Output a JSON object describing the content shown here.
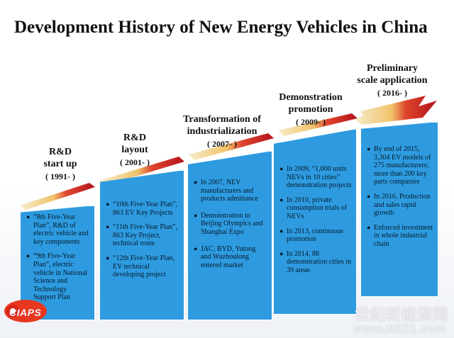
{
  "title": "Development History of New Energy Vehicles in China",
  "stages": [
    {
      "name": "R&D\nstart up",
      "year": "( 1991- )",
      "bullets": [
        "“8th Five-Year Plan”, R&D of electric vehicle and key components",
        "“9th Five-Year Plan”, electric vehicle in National Science and Technology Support Plan"
      ]
    },
    {
      "name": "R&D\nlayout",
      "year": "( 2001- )",
      "bullets": [
        "“10th  Five-Year Plan”, 863 EV Key Projects",
        "“11th Five-Year Plan”, 863 Key Project, technical route",
        "“12th Five-Year Plan, EV technical developing project"
      ]
    },
    {
      "name": "Transformation of\nindustrialization",
      "year": "( 2007- )",
      "bullets": [
        "In 2007, NEV manufacturers and products admittance",
        "Demonstration in Beijing Olympics and Shanghai Expo",
        "JAC, BYD, Yutong and Wuzhoulong entered market"
      ]
    },
    {
      "name": "Demonstration\npromotion",
      "year": "( 2009- )",
      "bullets": [
        "In 2009, “1,000 units NEVs in 10 cities” demonstration projects",
        "In 2010, private consumption trials of NEVs",
        "In 2013, continuous promotion",
        "In 2014, 88 demonstration cities in 39 areas"
      ]
    },
    {
      "name": "Preliminary\nscale application",
      "year": "( 2016- )",
      "bullets": [
        "By end of 2015, 3,304 EV models of 275 manufacturers; more than 200 key parts companies",
        "In 2016, Production and sales rapid growth",
        "Enforced investment in whole industrial chain"
      ]
    }
  ],
  "logo": "CIAPS",
  "watermark": {
    "cn": "世纪新能源网",
    "url": "www.NE21.com"
  },
  "colors": {
    "box": "#2e9be0",
    "arrow_start": "#f3e3a4",
    "arrow_end": "#b3121b"
  }
}
